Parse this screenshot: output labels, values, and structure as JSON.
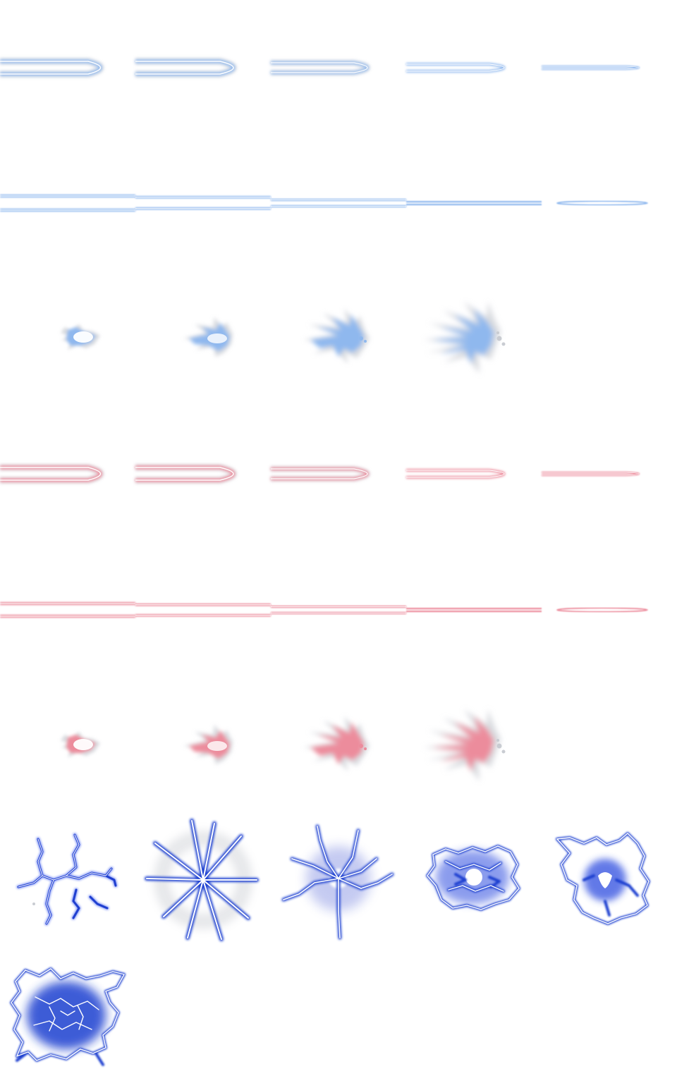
{
  "sprite_sheet": {
    "columns": 5,
    "rows": 8,
    "palette": {
      "blue_glow": "#8fb8ee",
      "blue_core": "#ffffff",
      "red_glow": "#ec8c9c",
      "red_core": "#ffffff",
      "smoke": "#c9ccd2",
      "lightning_outline": "#1f3fd0",
      "lightning_glow": "#3d5cf0",
      "lightning_core": "#ffffff"
    },
    "animations": [
      {
        "name": "blue-beam-fade",
        "row": 0,
        "frames": 5,
        "color": "blue",
        "kind": "capsule-beam"
      },
      {
        "name": "blue-laser-fade",
        "row": 1,
        "frames": 5,
        "color": "blue",
        "kind": "double-line-beam"
      },
      {
        "name": "blue-muzzle-burst",
        "row": 2,
        "frames": 4,
        "color": "blue",
        "kind": "burst"
      },
      {
        "name": "red-beam-fade",
        "row": 3,
        "frames": 5,
        "color": "red",
        "kind": "capsule-beam"
      },
      {
        "name": "red-laser-fade",
        "row": 4,
        "frames": 5,
        "color": "red",
        "kind": "double-line-beam"
      },
      {
        "name": "red-muzzle-burst",
        "row": 5,
        "frames": 4,
        "color": "red",
        "kind": "burst"
      },
      {
        "name": "lightning-strike",
        "row": 6,
        "frames": 5,
        "color": "electric-blue",
        "kind": "lightning"
      },
      {
        "name": "lightning-strike-end",
        "row": 7,
        "frames": 1,
        "color": "electric-blue",
        "kind": "lightning"
      }
    ]
  }
}
